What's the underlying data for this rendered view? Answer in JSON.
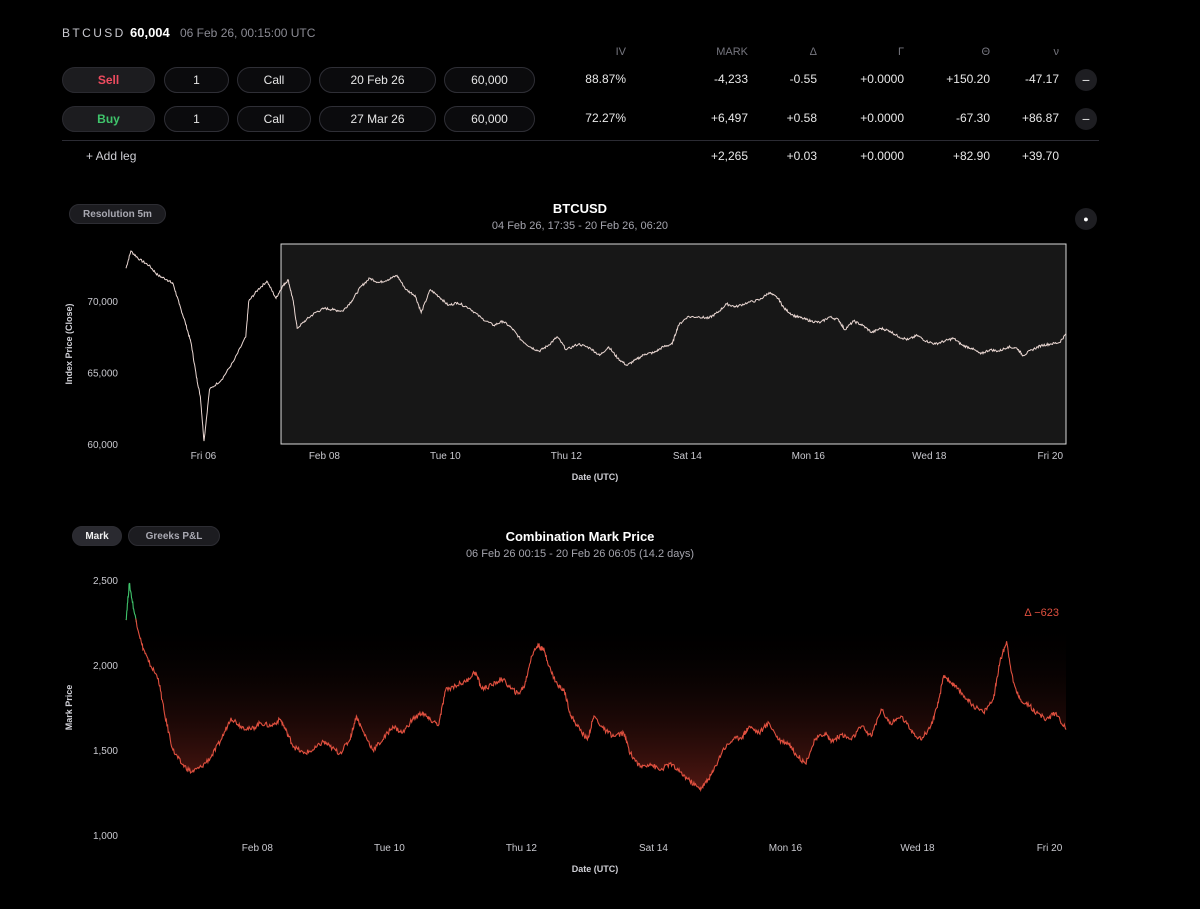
{
  "header": {
    "symbol": "BTCUSD",
    "price": "60,004",
    "timestamp": "06 Feb 26, 00:15:00 UTC"
  },
  "legs_table": {
    "columns": [
      "IV",
      "MARK",
      "Δ",
      "Γ",
      "Θ",
      "ν"
    ],
    "legs": [
      {
        "side": "Sell",
        "qty": "1",
        "type": "Call",
        "expiry": "20 Feb 26",
        "strike": "60,000",
        "iv": "88.87%",
        "mark": "-4,233",
        "delta": "-0.55",
        "gamma": "+0.0000",
        "theta": "+150.20",
        "vega": "-47.17"
      },
      {
        "side": "Buy",
        "qty": "1",
        "type": "Call",
        "expiry": "27 Mar 26",
        "strike": "60,000",
        "iv": "72.27%",
        "mark": "+6,497",
        "delta": "+0.58",
        "gamma": "+0.0000",
        "theta": "-67.30",
        "vega": "+86.87"
      }
    ],
    "add_leg_label": "+ Add leg",
    "totals": {
      "mark": "+2,265",
      "delta": "+0.03",
      "gamma": "+0.0000",
      "theta": "+82.90",
      "vega": "+39.70"
    },
    "remove_symbol": "−"
  },
  "index_chart": {
    "resolution_label": "Resolution 5m",
    "dot_symbol": "●",
    "colors": {
      "line": "#ead7d2",
      "selection_bg": "#171717",
      "selection_border": "#d8d8d8"
    }
  },
  "mark_chart": {
    "tabs": [
      {
        "label": "Mark",
        "active": true
      },
      {
        "label": "Greeks P&L",
        "active": false
      }
    ],
    "delta_annotation": "Δ −623",
    "colors": {
      "line_loss": "#e0503f",
      "line_gain": "#3fc46b",
      "annotation": "#e0503f"
    }
  },
  "chart_data": [
    {
      "type": "line",
      "title": "BTCUSD",
      "subtitle": "04 Feb 26, 17:35 - 20 Feb 26, 06:20",
      "xlabel": "Date (UTC)",
      "ylabel": "Index Price (Close)",
      "ylim": [
        60000,
        74000
      ],
      "xlim_days": [
        -1.28,
        14.26
      ],
      "x_ticks": [
        {
          "day": 0,
          "label": "Fri 06"
        },
        {
          "day": 2,
          "label": "Feb 08"
        },
        {
          "day": 4,
          "label": "Tue 10"
        },
        {
          "day": 6,
          "label": "Thu 12"
        },
        {
          "day": 8,
          "label": "Sat 14"
        },
        {
          "day": 10,
          "label": "Mon 16"
        },
        {
          "day": 12,
          "label": "Wed 18"
        },
        {
          "day": 14,
          "label": "Fri 20"
        }
      ],
      "y_ticks": [
        {
          "value": 60000,
          "label": "60,000"
        },
        {
          "value": 65000,
          "label": "65,000"
        },
        {
          "value": 70000,
          "label": "70,000"
        }
      ],
      "selection_range_days": [
        0.01,
        14.26
      ],
      "grid": false,
      "series": [
        {
          "points": [
            [
              -1.28,
              72300
            ],
            [
              -1.2,
              73500
            ],
            [
              -1.05,
              72900
            ],
            [
              -0.9,
              72500
            ],
            [
              -0.75,
              71800
            ],
            [
              -0.6,
              71500
            ],
            [
              -0.5,
              71200
            ],
            [
              -0.4,
              69800
            ],
            [
              -0.3,
              68500
            ],
            [
              -0.2,
              67000
            ],
            [
              -0.12,
              64800
            ],
            [
              -0.05,
              63300
            ],
            [
              0.01,
              60200
            ],
            [
              0.1,
              63800
            ],
            [
              0.3,
              64500
            ],
            [
              0.5,
              65800
            ],
            [
              0.7,
              67500
            ],
            [
              0.75,
              70000
            ],
            [
              0.9,
              70800
            ],
            [
              1.05,
              71400
            ],
            [
              1.2,
              70200
            ],
            [
              1.3,
              71000
            ],
            [
              1.4,
              71500
            ],
            [
              1.48,
              70100
            ],
            [
              1.55,
              68100
            ],
            [
              1.7,
              68700
            ],
            [
              1.85,
              69200
            ],
            [
              2.0,
              69500
            ],
            [
              2.15,
              69400
            ],
            [
              2.3,
              69300
            ],
            [
              2.45,
              70000
            ],
            [
              2.6,
              71000
            ],
            [
              2.75,
              71600
            ],
            [
              2.9,
              71300
            ],
            [
              3.05,
              71500
            ],
            [
              3.2,
              71800
            ],
            [
              3.35,
              70800
            ],
            [
              3.5,
              70400
            ],
            [
              3.6,
              69200
            ],
            [
              3.75,
              70800
            ],
            [
              3.9,
              70300
            ],
            [
              4.05,
              69700
            ],
            [
              4.2,
              69900
            ],
            [
              4.4,
              69500
            ],
            [
              4.6,
              68800
            ],
            [
              4.8,
              68300
            ],
            [
              4.95,
              68600
            ],
            [
              5.1,
              68100
            ],
            [
              5.25,
              67300
            ],
            [
              5.4,
              66800
            ],
            [
              5.55,
              66500
            ],
            [
              5.7,
              66900
            ],
            [
              5.85,
              67500
            ],
            [
              6.0,
              66600
            ],
            [
              6.2,
              67000
            ],
            [
              6.4,
              66700
            ],
            [
              6.55,
              66200
            ],
            [
              6.7,
              66800
            ],
            [
              6.85,
              66000
            ],
            [
              7.0,
              65500
            ],
            [
              7.15,
              65900
            ],
            [
              7.3,
              66300
            ],
            [
              7.45,
              66400
            ],
            [
              7.6,
              66800
            ],
            [
              7.75,
              67000
            ],
            [
              7.85,
              68300
            ],
            [
              8.0,
              68900
            ],
            [
              8.2,
              68900
            ],
            [
              8.35,
              68800
            ],
            [
              8.5,
              69200
            ],
            [
              8.65,
              69800
            ],
            [
              8.8,
              69600
            ],
            [
              9.0,
              69900
            ],
            [
              9.2,
              70100
            ],
            [
              9.35,
              70600
            ],
            [
              9.5,
              70200
            ],
            [
              9.6,
              69500
            ],
            [
              9.75,
              69000
            ],
            [
              9.9,
              68800
            ],
            [
              10.05,
              68600
            ],
            [
              10.2,
              68500
            ],
            [
              10.35,
              68900
            ],
            [
              10.5,
              68700
            ],
            [
              10.6,
              68000
            ],
            [
              10.75,
              68600
            ],
            [
              10.9,
              68300
            ],
            [
              11.05,
              67800
            ],
            [
              11.2,
              68100
            ],
            [
              11.35,
              67900
            ],
            [
              11.5,
              67500
            ],
            [
              11.65,
              67300
            ],
            [
              11.8,
              67600
            ],
            [
              11.95,
              67200
            ],
            [
              12.1,
              67000
            ],
            [
              12.25,
              67200
            ],
            [
              12.4,
              67400
            ],
            [
              12.55,
              66900
            ],
            [
              12.7,
              66700
            ],
            [
              12.85,
              66300
            ],
            [
              13.0,
              66600
            ],
            [
              13.15,
              66500
            ],
            [
              13.3,
              66800
            ],
            [
              13.45,
              66700
            ],
            [
              13.55,
              66200
            ],
            [
              13.7,
              66600
            ],
            [
              13.85,
              66900
            ],
            [
              14.0,
              67000
            ],
            [
              14.15,
              67100
            ],
            [
              14.26,
              67700
            ]
          ]
        }
      ]
    },
    {
      "type": "line",
      "title": "Combination Mark Price",
      "subtitle": "06 Feb 26 00:15 - 20 Feb 26 06:05 (14.2 days)",
      "xlabel": "Date (UTC)",
      "ylabel": "Mark Price",
      "ylim": [
        1000,
        2500
      ],
      "xlim_days": [
        0.01,
        14.25
      ],
      "x_ticks": [
        {
          "day": 2,
          "label": "Feb 08"
        },
        {
          "day": 4,
          "label": "Tue 10"
        },
        {
          "day": 6,
          "label": "Thu 12"
        },
        {
          "day": 8,
          "label": "Sat 14"
        },
        {
          "day": 10,
          "label": "Mon 16"
        },
        {
          "day": 12,
          "label": "Wed 18"
        },
        {
          "day": 14,
          "label": "Fri 20"
        }
      ],
      "y_ticks": [
        {
          "value": 1000,
          "label": "1,000"
        },
        {
          "value": 1500,
          "label": "1,500"
        },
        {
          "value": 2000,
          "label": "2,000"
        },
        {
          "value": 2500,
          "label": "2,500"
        }
      ],
      "reference_value": 2265,
      "grid": false,
      "series": [
        {
          "points": [
            [
              0.01,
              2265
            ],
            [
              0.06,
              2480
            ],
            [
              0.14,
              2300
            ],
            [
              0.25,
              2120
            ],
            [
              0.35,
              2020
            ],
            [
              0.5,
              1920
            ],
            [
              0.6,
              1700
            ],
            [
              0.72,
              1500
            ],
            [
              0.85,
              1420
            ],
            [
              1.0,
              1370
            ],
            [
              1.15,
              1400
            ],
            [
              1.3,
              1460
            ],
            [
              1.45,
              1560
            ],
            [
              1.6,
              1690
            ],
            [
              1.75,
              1640
            ],
            [
              1.9,
              1620
            ],
            [
              2.05,
              1660
            ],
            [
              2.2,
              1640
            ],
            [
              2.35,
              1680
            ],
            [
              2.45,
              1600
            ],
            [
              2.55,
              1520
            ],
            [
              2.7,
              1480
            ],
            [
              2.85,
              1500
            ],
            [
              3.0,
              1550
            ],
            [
              3.1,
              1520
            ],
            [
              3.25,
              1480
            ],
            [
              3.4,
              1560
            ],
            [
              3.5,
              1700
            ],
            [
              3.6,
              1610
            ],
            [
              3.75,
              1500
            ],
            [
              3.9,
              1560
            ],
            [
              4.05,
              1640
            ],
            [
              4.2,
              1600
            ],
            [
              4.35,
              1680
            ],
            [
              4.5,
              1720
            ],
            [
              4.6,
              1680
            ],
            [
              4.75,
              1650
            ],
            [
              4.85,
              1850
            ],
            [
              5.0,
              1880
            ],
            [
              5.15,
              1900
            ],
            [
              5.3,
              1960
            ],
            [
              5.4,
              1860
            ],
            [
              5.55,
              1880
            ],
            [
              5.7,
              1920
            ],
            [
              5.85,
              1860
            ],
            [
              5.95,
              1830
            ],
            [
              6.05,
              1880
            ],
            [
              6.15,
              2050
            ],
            [
              6.25,
              2120
            ],
            [
              6.35,
              2080
            ],
            [
              6.45,
              1960
            ],
            [
              6.55,
              1880
            ],
            [
              6.65,
              1850
            ],
            [
              6.75,
              1700
            ],
            [
              6.85,
              1640
            ],
            [
              7.0,
              1560
            ],
            [
              7.1,
              1700
            ],
            [
              7.25,
              1620
            ],
            [
              7.4,
              1580
            ],
            [
              7.55,
              1600
            ],
            [
              7.65,
              1480
            ],
            [
              7.8,
              1400
            ],
            [
              7.95,
              1420
            ],
            [
              8.1,
              1380
            ],
            [
              8.25,
              1420
            ],
            [
              8.4,
              1370
            ],
            [
              8.55,
              1320
            ],
            [
              8.7,
              1270
            ],
            [
              8.8,
              1310
            ],
            [
              8.9,
              1370
            ],
            [
              9.05,
              1500
            ],
            [
              9.2,
              1560
            ],
            [
              9.35,
              1580
            ],
            [
              9.45,
              1640
            ],
            [
              9.6,
              1600
            ],
            [
              9.75,
              1660
            ],
            [
              9.9,
              1560
            ],
            [
              10.05,
              1540
            ],
            [
              10.15,
              1480
            ],
            [
              10.3,
              1420
            ],
            [
              10.45,
              1560
            ],
            [
              10.6,
              1600
            ],
            [
              10.7,
              1550
            ],
            [
              10.85,
              1590
            ],
            [
              11.0,
              1560
            ],
            [
              11.15,
              1640
            ],
            [
              11.3,
              1580
            ],
            [
              11.45,
              1740
            ],
            [
              11.6,
              1650
            ],
            [
              11.75,
              1700
            ],
            [
              11.9,
              1620
            ],
            [
              12.05,
              1560
            ],
            [
              12.2,
              1640
            ],
            [
              12.3,
              1750
            ],
            [
              12.4,
              1940
            ],
            [
              12.5,
              1900
            ],
            [
              12.6,
              1860
            ],
            [
              12.75,
              1800
            ],
            [
              12.85,
              1760
            ],
            [
              13.0,
              1720
            ],
            [
              13.15,
              1800
            ],
            [
              13.25,
              2020
            ],
            [
              13.35,
              2140
            ],
            [
              13.45,
              1900
            ],
            [
              13.55,
              1800
            ],
            [
              13.7,
              1760
            ],
            [
              13.8,
              1720
            ],
            [
              13.95,
              1680
            ],
            [
              14.1,
              1720
            ],
            [
              14.25,
              1620
            ]
          ]
        }
      ]
    }
  ]
}
